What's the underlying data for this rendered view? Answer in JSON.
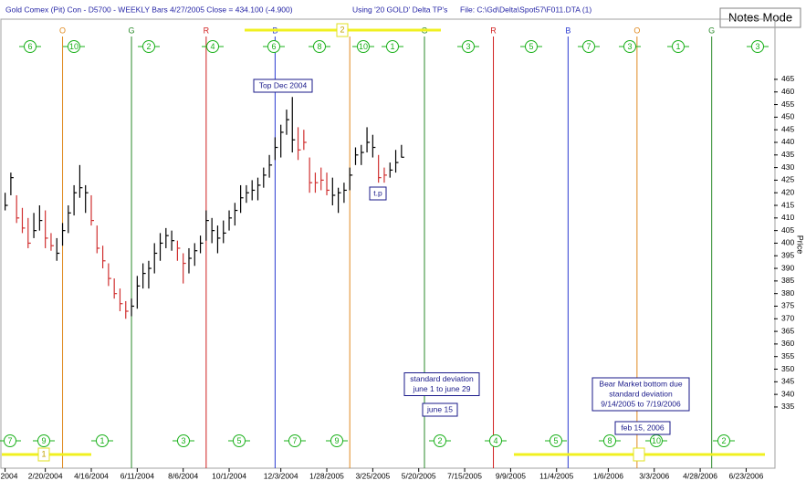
{
  "chart_data": {
    "type": "hlc",
    "title": "Gold Comex (Pit) Con - D5700 - WEEKLY Bars  4/27/2005 Close = 434.100 (-4.900)",
    "subtitle": "Using '20 GOLD' Delta TP's",
    "file_label": "File: C:\\Gd\\Delta\\Spot57\\F011.DTA (1)",
    "mode_button": "Notes Mode",
    "y_label": "Price",
    "x": [
      "1/2/2004",
      "1/9/2004",
      "1/16/2004",
      "1/23/2004",
      "1/30/2004",
      "2/6/2004",
      "2/13/2004",
      "2/20/2004",
      "2/27/2004",
      "3/5/2004",
      "3/12/2004",
      "3/19/2004",
      "3/26/2004",
      "4/2/2004",
      "4/9/2004",
      "4/16/2004",
      "4/23/2004",
      "4/30/2004",
      "5/7/2004",
      "5/14/2004",
      "5/21/2004",
      "5/28/2004",
      "6/4/2004",
      "6/11/2004",
      "6/18/2004",
      "6/25/2004",
      "7/2/2004",
      "7/9/2004",
      "7/16/2004",
      "7/23/2004",
      "7/30/2004",
      "8/6/2004",
      "8/13/2004",
      "8/20/2004",
      "8/27/2004",
      "9/3/2004",
      "9/10/2004",
      "9/17/2004",
      "9/24/2004",
      "10/1/2004",
      "10/8/2004",
      "10/15/2004",
      "10/22/2004",
      "10/29/2004",
      "11/5/2004",
      "11/12/2004",
      "11/19/2004",
      "11/26/2004",
      "12/3/2004",
      "12/10/2004",
      "12/17/2004",
      "12/24/2004",
      "12/31/2004",
      "1/7/2005",
      "1/14/2005",
      "1/21/2005",
      "1/28/2005",
      "2/4/2005",
      "2/11/2005",
      "2/18/2005",
      "2/25/2005",
      "3/4/2005",
      "3/11/2005",
      "3/18/2005",
      "3/25/2005",
      "4/1/2005",
      "4/8/2005",
      "4/15/2005",
      "4/22/2005",
      "4/29/2005"
    ],
    "high": [
      420,
      428,
      419,
      414,
      410,
      412,
      415,
      413,
      404,
      402,
      408,
      415,
      423,
      431,
      423,
      419,
      407,
      399,
      392,
      386,
      382,
      377,
      378,
      387,
      392,
      393,
      400,
      404,
      406,
      405,
      401,
      396,
      398,
      400,
      403,
      413,
      410,
      407,
      409,
      413,
      416,
      423,
      423,
      425,
      426,
      430,
      435,
      442,
      447,
      453,
      458,
      446,
      445,
      434,
      428,
      430,
      428,
      426,
      422,
      424,
      430,
      438,
      439,
      446,
      443,
      435,
      430,
      432,
      437,
      439
    ],
    "low": [
      413,
      419,
      408,
      404,
      398,
      402,
      405,
      398,
      397,
      393,
      399,
      404,
      411,
      418,
      412,
      407,
      396,
      390,
      383,
      378,
      373,
      370,
      371,
      374,
      382,
      382,
      388,
      393,
      398,
      397,
      393,
      384,
      388,
      391,
      396,
      401,
      400,
      396,
      400,
      405,
      407,
      412,
      416,
      417,
      417,
      422,
      426,
      433,
      434,
      443,
      436,
      433,
      437,
      420,
      420,
      421,
      419,
      415,
      412,
      416,
      421,
      431,
      431,
      436,
      434,
      424,
      424,
      426,
      428,
      434
    ],
    "close": [
      415,
      426,
      410,
      406,
      400,
      405,
      409,
      402,
      399,
      396,
      405,
      412,
      420,
      422,
      420,
      409,
      398,
      393,
      386,
      380,
      376,
      373,
      375,
      383,
      388,
      390,
      396,
      400,
      403,
      401,
      398,
      392,
      394,
      397,
      400,
      409,
      405,
      402,
      404,
      410,
      413,
      418,
      420,
      421,
      423,
      427,
      431,
      438,
      444,
      449,
      441,
      437,
      440,
      424,
      424,
      425,
      421,
      419,
      420,
      421,
      427,
      435,
      436,
      440,
      438,
      426,
      427,
      429,
      432,
      434.1
    ],
    "bar_colors": [
      "#000000",
      "#000000",
      "#d03030",
      "#d03030",
      "#d03030",
      "#000000",
      "#000000",
      "#d03030",
      "#d03030",
      "#000000",
      "#000000",
      "#000000",
      "#000000",
      "#000000",
      "#000000",
      "#d03030",
      "#d03030",
      "#d03030",
      "#d03030",
      "#d03030",
      "#d03030",
      "#d03030",
      "#000000",
      "#000000",
      "#000000",
      "#000000",
      "#000000",
      "#000000",
      "#000000",
      "#000000",
      "#d03030",
      "#d03030",
      "#000000",
      "#000000",
      "#000000",
      "#000000",
      "#000000",
      "#000000",
      "#000000",
      "#000000",
      "#000000",
      "#000000",
      "#000000",
      "#000000",
      "#000000",
      "#000000",
      "#000000",
      "#000000",
      "#000000",
      "#000000",
      "#000000",
      "#d03030",
      "#d03030",
      "#d03030",
      "#d03030",
      "#d03030",
      "#d03030",
      "#000000",
      "#000000",
      "#000000",
      "#000000",
      "#000000",
      "#000000",
      "#000000",
      "#000000",
      "#d03030",
      "#d03030",
      "#000000",
      "#000000",
      "#000000"
    ],
    "xlim": [
      "12/29/2003",
      "7/27/2006"
    ],
    "xticks": [
      {
        "value": "1/2/2004",
        "label": "2004"
      },
      "2/20/2004",
      "4/16/2004",
      "6/11/2004",
      "8/6/2004",
      "10/1/2004",
      "12/3/2004",
      "1/28/2005",
      "3/25/2005",
      "5/20/2005",
      "7/15/2005",
      "9/9/2005",
      "11/4/2005",
      "1/6/2006",
      "3/3/2006",
      "4/28/2006",
      "6/23/2006"
    ],
    "ylim": [
      329,
      487
    ],
    "yticks": [
      335,
      340,
      345,
      350,
      355,
      360,
      365,
      370,
      375,
      380,
      385,
      390,
      395,
      400,
      405,
      410,
      415,
      420,
      425,
      430,
      435,
      440,
      445,
      450,
      455,
      460,
      465
    ],
    "cycle_lines": [
      {
        "x": "3/12/2004",
        "label": "O",
        "color": "#e08a20"
      },
      {
        "x": "6/4/2004",
        "label": "G",
        "color": "#2a8a2a"
      },
      {
        "x": "9/3/2004",
        "label": "R",
        "color": "#d02020"
      },
      {
        "x": "11/26/2004",
        "label": "B",
        "color": "#2a3ad0"
      },
      {
        "x": "2/25/2005",
        "label": null,
        "color": "#e08a20"
      },
      {
        "x": "5/27/2005",
        "label": "G",
        "color": "#2a8a2a"
      },
      {
        "x": "8/19/2005",
        "label": "R",
        "color": "#d02020"
      },
      {
        "x": "11/18/2005",
        "label": "B",
        "color": "#2a3ad0"
      },
      {
        "x": "2/10/2006",
        "label": "O",
        "color": "#e08a20"
      },
      {
        "x": "5/12/2006",
        "label": "G",
        "color": "#2a8a2a"
      }
    ],
    "top_markers": [
      "6",
      "10",
      "2",
      "4",
      "6",
      "8",
      "10",
      "1",
      "3",
      "5",
      "7",
      "3",
      "1",
      "3"
    ],
    "bottom_markers": [
      "7",
      "9",
      "1",
      "3",
      "5",
      "7",
      "9",
      "2",
      "4",
      "5",
      "8",
      "10",
      "2"
    ],
    "band_labels": [
      "2",
      "1"
    ],
    "annotations": [
      {
        "lines": [
          "Top Dec 2004"
        ]
      },
      {
        "lines": [
          "t.p"
        ]
      },
      {
        "lines": [
          "standard deviation",
          "june 1 to june 29"
        ]
      },
      {
        "lines": [
          "june 15"
        ]
      },
      {
        "lines": [
          "Bear Market bottom due",
          "standard deviation",
          "9/14/2005 to 7/19/2006"
        ]
      },
      {
        "lines": [
          "feb 15, 2006"
        ]
      }
    ]
  }
}
